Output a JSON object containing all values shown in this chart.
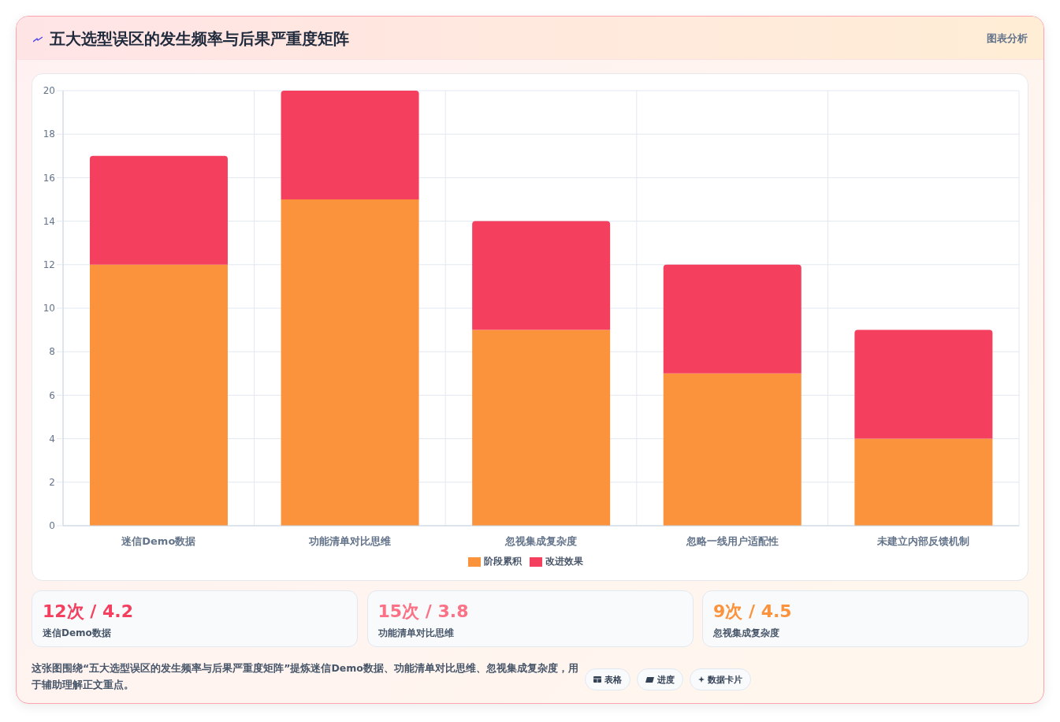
{
  "chart_data": {
    "type": "bar",
    "title": "五大选型误区的发生频率与后果严重度矩阵",
    "categories": [
      "迷信Demo数据",
      "功能清单对比思维",
      "忽视集成复杂度",
      "忽略一线用户适配性",
      "未建立内部反馈机制"
    ],
    "series": [
      {
        "name": "阶段累积",
        "color": "#fb923c",
        "values": [
          12,
          15,
          9,
          7,
          4
        ]
      },
      {
        "name": "改进效果",
        "color": "#f43f5e",
        "values": [
          5,
          5,
          5,
          5,
          5
        ]
      }
    ],
    "stacked": true,
    "ylim": [
      0,
      20
    ],
    "yticks": [
      0,
      2,
      4,
      6,
      8,
      10,
      12,
      14,
      16,
      18,
      20
    ],
    "grid": true,
    "legend": "bottom",
    "annotations": [
      "图表分析",
      "12次 / 4.2",
      "迷信Demo数据",
      "15次 / 3.8",
      "功能清单对比思维",
      "9次 / 4.5",
      "忽视集成复杂度",
      "这张图围绕“五大选型误区的发生频率与后果严重度矩阵”提炼迷信Demo数据、功能清单对比思维、忽视集成复杂度，用于辅助理解正文重点。",
      "表格",
      "进度",
      "数据卡片"
    ]
  }
}
